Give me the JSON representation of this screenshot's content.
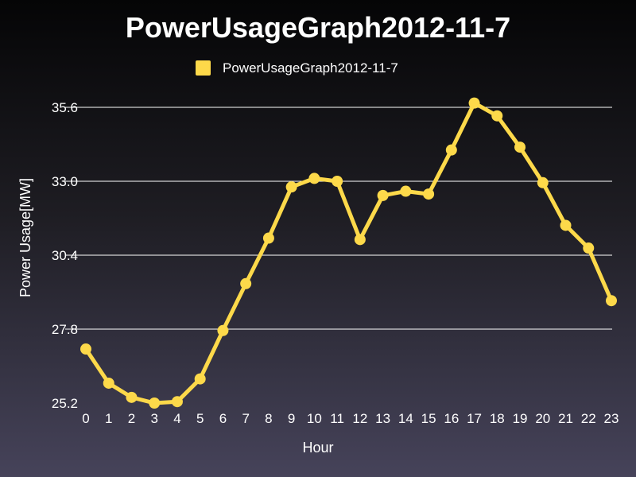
{
  "chart_data": {
    "type": "line",
    "title": "PowerUsageGraph2012-11-7",
    "xlabel": "Hour",
    "ylabel": "Power Usage[MW]",
    "x": [
      0,
      1,
      2,
      3,
      4,
      5,
      6,
      7,
      8,
      9,
      10,
      11,
      12,
      13,
      14,
      15,
      16,
      17,
      18,
      19,
      20,
      21,
      22,
      23
    ],
    "xticks": [
      "0",
      "1",
      "2",
      "3",
      "4",
      "5",
      "6",
      "7",
      "8",
      "9",
      "10",
      "11",
      "12",
      "13",
      "14",
      "15",
      "16",
      "17",
      "18",
      "19",
      "20",
      "21",
      "22",
      "23"
    ],
    "yticks": [
      "25.2",
      "27.8",
      "30.4",
      "33.0",
      "35.6"
    ],
    "ylim": [
      25.2,
      35.6
    ],
    "grid": true,
    "legend_position": "top-center",
    "series": [
      {
        "name": "PowerUsageGraph2012-11-7",
        "color": "#fdd94a",
        "values": [
          27.1,
          25.9,
          25.4,
          25.2,
          25.25,
          26.05,
          27.75,
          29.4,
          31.0,
          32.8,
          33.1,
          33.0,
          30.95,
          32.5,
          32.65,
          32.55,
          34.1,
          35.75,
          35.3,
          34.2,
          32.95,
          31.45,
          30.65,
          28.8
        ]
      }
    ]
  }
}
